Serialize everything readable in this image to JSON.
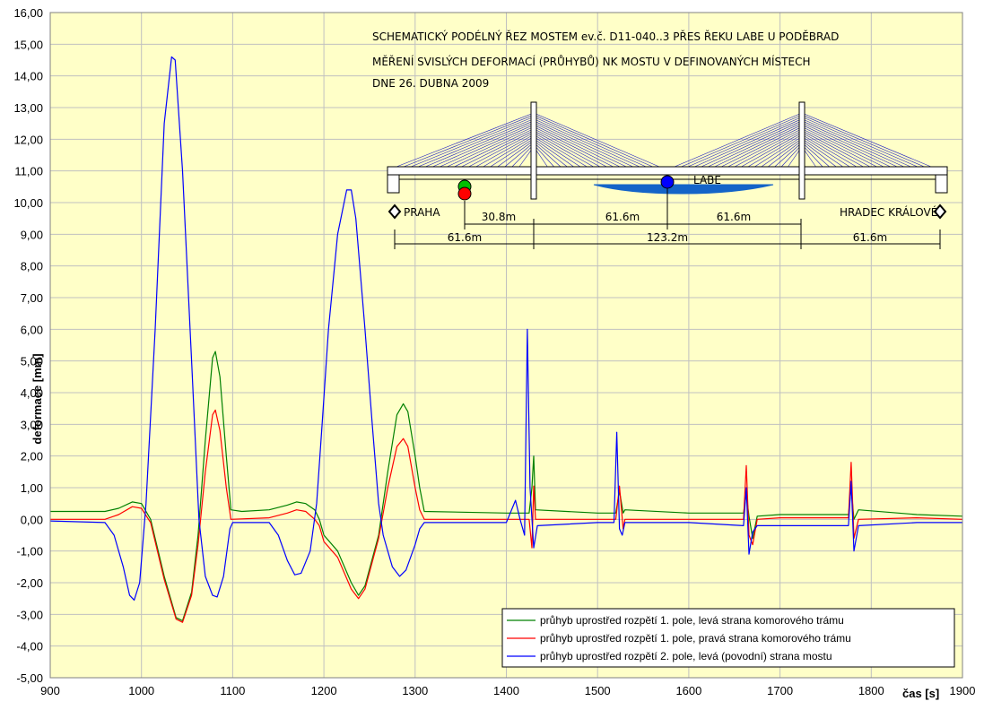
{
  "chart_data": {
    "type": "line",
    "xlabel": "čas [s]",
    "ylabel": "deformace [mm]",
    "xlim": [
      900,
      1900
    ],
    "ylim": [
      -5,
      16
    ],
    "x_ticks": [
      "900",
      "1000",
      "1100",
      "1200",
      "1300",
      "1400",
      "1500",
      "1600",
      "1700",
      "1800",
      "1900"
    ],
    "y_ticks": [
      "16,00",
      "15,00",
      "14,00",
      "13,00",
      "12,00",
      "11,00",
      "10,00",
      "9,00",
      "8,00",
      "7,00",
      "6,00",
      "5,00",
      "4,00",
      "3,00",
      "2,00",
      "1,00",
      "0,00",
      "-1,00",
      "-2,00",
      "-3,00",
      "-4,00",
      "-5,00"
    ],
    "plot_background": "#ffffc8",
    "grid_color": "#c0c0c0",
    "grid": true,
    "legend_position": "bottom-right",
    "series": [
      {
        "name": "průhyb uprostřed rozpětí 1. pole, levá strana komorového trámu",
        "color": "#008000",
        "points": [
          [
            900,
            0.25
          ],
          [
            960,
            0.25
          ],
          [
            975,
            0.35
          ],
          [
            990,
            0.55
          ],
          [
            1000,
            0.5
          ],
          [
            1010,
            0.0
          ],
          [
            1025,
            -1.8
          ],
          [
            1038,
            -3.1
          ],
          [
            1045,
            -3.2
          ],
          [
            1055,
            -2.3
          ],
          [
            1062,
            -0.5
          ],
          [
            1070,
            2.5
          ],
          [
            1078,
            5.1
          ],
          [
            1081,
            5.3
          ],
          [
            1086,
            4.5
          ],
          [
            1093,
            2.0
          ],
          [
            1098,
            0.3
          ],
          [
            1110,
            0.25
          ],
          [
            1140,
            0.3
          ],
          [
            1160,
            0.45
          ],
          [
            1170,
            0.55
          ],
          [
            1180,
            0.5
          ],
          [
            1190,
            0.3
          ],
          [
            1195,
            0.0
          ],
          [
            1200,
            -0.5
          ],
          [
            1215,
            -1.0
          ],
          [
            1230,
            -2.0
          ],
          [
            1238,
            -2.4
          ],
          [
            1245,
            -2.1
          ],
          [
            1260,
            -0.5
          ],
          [
            1270,
            1.5
          ],
          [
            1280,
            3.3
          ],
          [
            1287,
            3.65
          ],
          [
            1292,
            3.4
          ],
          [
            1300,
            2.0
          ],
          [
            1305,
            1.0
          ],
          [
            1310,
            0.25
          ],
          [
            1400,
            0.2
          ],
          [
            1425,
            0.2
          ],
          [
            1428,
            1.0
          ],
          [
            1430,
            2.0
          ],
          [
            1432,
            0.3
          ],
          [
            1500,
            0.2
          ],
          [
            1520,
            0.2
          ],
          [
            1524,
            0.9
          ],
          [
            1528,
            0.2
          ],
          [
            1530,
            0.3
          ],
          [
            1600,
            0.2
          ],
          [
            1660,
            0.2
          ],
          [
            1663,
            0.8
          ],
          [
            1666,
            0.1
          ],
          [
            1670,
            -0.6
          ],
          [
            1675,
            0.1
          ],
          [
            1700,
            0.15
          ],
          [
            1775,
            0.15
          ],
          [
            1778,
            1.0
          ],
          [
            1781,
            0.0
          ],
          [
            1786,
            0.3
          ],
          [
            1850,
            0.15
          ],
          [
            1900,
            0.1
          ]
        ]
      },
      {
        "name": "průhyb uprostřed rozpětí 1. pole, pravá strana komorového trámu",
        "color": "#ff0000",
        "points": [
          [
            900,
            0.0
          ],
          [
            960,
            0.0
          ],
          [
            975,
            0.15
          ],
          [
            990,
            0.4
          ],
          [
            1000,
            0.35
          ],
          [
            1010,
            -0.1
          ],
          [
            1025,
            -1.9
          ],
          [
            1038,
            -3.15
          ],
          [
            1045,
            -3.25
          ],
          [
            1055,
            -2.4
          ],
          [
            1062,
            -0.8
          ],
          [
            1070,
            1.5
          ],
          [
            1078,
            3.3
          ],
          [
            1081,
            3.45
          ],
          [
            1086,
            2.8
          ],
          [
            1093,
            1.0
          ],
          [
            1098,
            0.0
          ],
          [
            1140,
            0.05
          ],
          [
            1160,
            0.2
          ],
          [
            1170,
            0.3
          ],
          [
            1180,
            0.25
          ],
          [
            1190,
            0.0
          ],
          [
            1195,
            -0.2
          ],
          [
            1200,
            -0.7
          ],
          [
            1215,
            -1.2
          ],
          [
            1230,
            -2.2
          ],
          [
            1238,
            -2.5
          ],
          [
            1245,
            -2.2
          ],
          [
            1260,
            -0.6
          ],
          [
            1270,
            1.0
          ],
          [
            1280,
            2.3
          ],
          [
            1287,
            2.55
          ],
          [
            1292,
            2.3
          ],
          [
            1300,
            1.0
          ],
          [
            1305,
            0.3
          ],
          [
            1310,
            0.0
          ],
          [
            1400,
            0.0
          ],
          [
            1425,
            0.0
          ],
          [
            1428,
            -0.9
          ],
          [
            1430,
            1.05
          ],
          [
            1432,
            0.0
          ],
          [
            1500,
            0.0
          ],
          [
            1520,
            0.0
          ],
          [
            1524,
            1.05
          ],
          [
            1528,
            -0.3
          ],
          [
            1530,
            0.0
          ],
          [
            1600,
            0.0
          ],
          [
            1660,
            0.0
          ],
          [
            1663,
            1.7
          ],
          [
            1666,
            -0.5
          ],
          [
            1670,
            -0.8
          ],
          [
            1675,
            0.0
          ],
          [
            1700,
            0.05
          ],
          [
            1775,
            0.05
          ],
          [
            1778,
            1.8
          ],
          [
            1781,
            -0.6
          ],
          [
            1786,
            0.0
          ],
          [
            1850,
            0.05
          ],
          [
            1900,
            0.0
          ]
        ]
      },
      {
        "name": "průhyb uprostřed rozpětí 2. pole, levá (povodní) strana mostu",
        "color": "#0000ff",
        "points": [
          [
            900,
            -0.05
          ],
          [
            960,
            -0.1
          ],
          [
            970,
            -0.5
          ],
          [
            980,
            -1.5
          ],
          [
            987,
            -2.4
          ],
          [
            992,
            -2.55
          ],
          [
            998,
            -2.0
          ],
          [
            1005,
            0.5
          ],
          [
            1015,
            6.0
          ],
          [
            1025,
            12.5
          ],
          [
            1033,
            14.6
          ],
          [
            1037,
            14.5
          ],
          [
            1045,
            11.0
          ],
          [
            1055,
            5.0
          ],
          [
            1063,
            0.0
          ],
          [
            1070,
            -1.8
          ],
          [
            1078,
            -2.4
          ],
          [
            1083,
            -2.45
          ],
          [
            1090,
            -1.8
          ],
          [
            1097,
            -0.3
          ],
          [
            1100,
            -0.1
          ],
          [
            1140,
            -0.1
          ],
          [
            1150,
            -0.5
          ],
          [
            1160,
            -1.3
          ],
          [
            1168,
            -1.75
          ],
          [
            1175,
            -1.7
          ],
          [
            1185,
            -1.0
          ],
          [
            1192,
            0.5
          ],
          [
            1198,
            3.0
          ],
          [
            1205,
            6.0
          ],
          [
            1215,
            9.0
          ],
          [
            1225,
            10.4
          ],
          [
            1230,
            10.4
          ],
          [
            1235,
            9.5
          ],
          [
            1245,
            6.0
          ],
          [
            1253,
            3.0
          ],
          [
            1260,
            0.5
          ],
          [
            1265,
            -0.5
          ],
          [
            1275,
            -1.5
          ],
          [
            1283,
            -1.8
          ],
          [
            1290,
            -1.6
          ],
          [
            1300,
            -0.8
          ],
          [
            1305,
            -0.3
          ],
          [
            1310,
            -0.1
          ],
          [
            1400,
            -0.1
          ],
          [
            1410,
            0.6
          ],
          [
            1415,
            0.0
          ],
          [
            1420,
            -0.5
          ],
          [
            1423,
            6.0
          ],
          [
            1426,
            1.0
          ],
          [
            1430,
            -0.9
          ],
          [
            1434,
            -0.2
          ],
          [
            1500,
            -0.1
          ],
          [
            1518,
            -0.1
          ],
          [
            1521,
            2.75
          ],
          [
            1524,
            -0.3
          ],
          [
            1527,
            -0.5
          ],
          [
            1530,
            -0.1
          ],
          [
            1600,
            -0.1
          ],
          [
            1660,
            -0.2
          ],
          [
            1663,
            1.0
          ],
          [
            1666,
            -1.1
          ],
          [
            1670,
            -0.4
          ],
          [
            1675,
            -0.2
          ],
          [
            1700,
            -0.2
          ],
          [
            1775,
            -0.2
          ],
          [
            1778,
            1.2
          ],
          [
            1781,
            -1.0
          ],
          [
            1786,
            -0.2
          ],
          [
            1850,
            -0.1
          ],
          [
            1900,
            -0.1
          ]
        ]
      }
    ]
  },
  "sketch": {
    "title_lines": [
      "SCHEMATICKÝ PODÉLNÝ ŘEZ MOSTEM ev.č. D11-040..3 PŘES ŘEKU LABE U PODĚBRAD",
      "MĚŘENÍ SVISLÝCH DEFORMACÍ (PRŮHYBŮ) NK MOSTU V DEFINOVANÝCH MÍSTECH",
      "DNE 26. DUBNA 2009"
    ],
    "river_label": "LABE",
    "left_label": "PRAHA",
    "right_label": "HRADEC KRÁLOVÉ",
    "dim_upper": [
      "30.8m",
      "61.6m",
      "61.6m"
    ],
    "dim_lower": [
      "61.6m",
      "123.2m",
      "61.6m"
    ],
    "marker_colors": {
      "green": "#00c000",
      "red": "#ff0000",
      "blue": "#0000ff"
    }
  }
}
